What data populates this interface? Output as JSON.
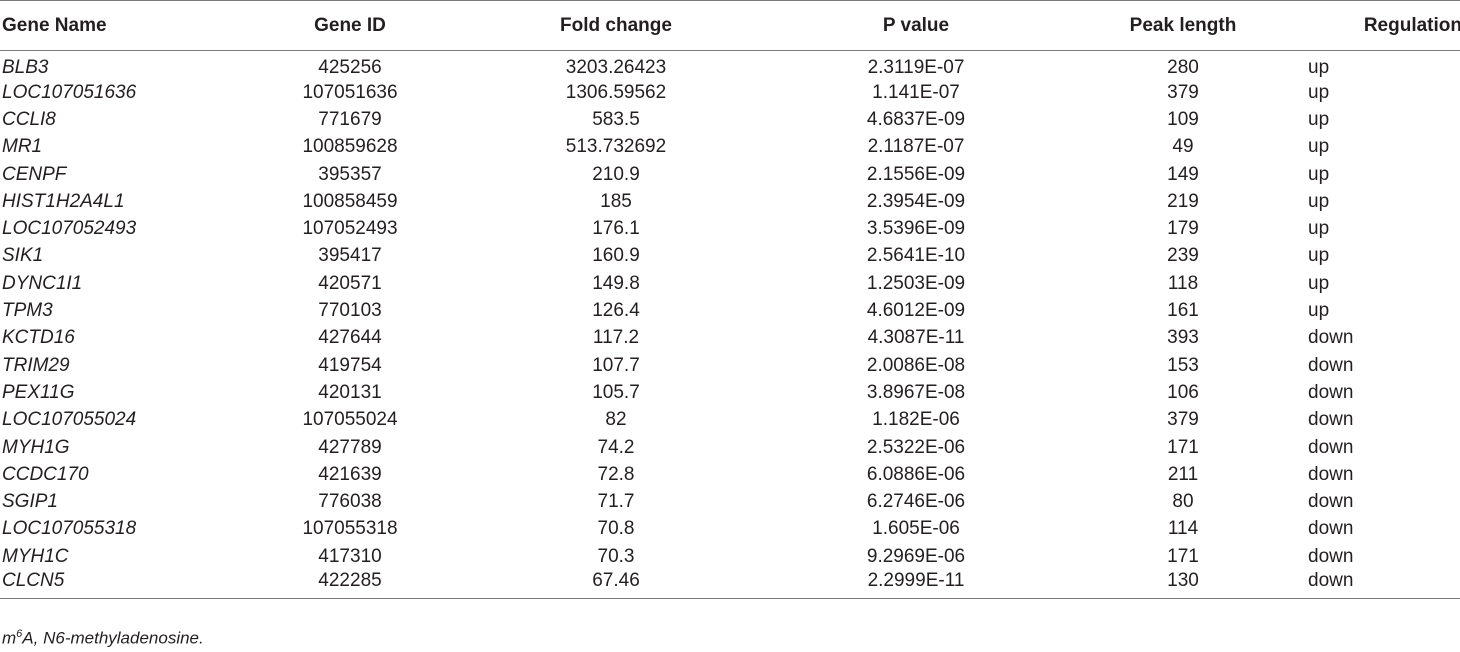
{
  "table": {
    "headers": [
      "Gene Name",
      "Gene ID",
      "Fold change",
      "P value",
      "Peak length",
      "Regulation"
    ],
    "rows": [
      [
        "BLB3",
        "425256",
        "3203.26423",
        "2.3119E-07",
        "280",
        "up"
      ],
      [
        "LOC107051636",
        "107051636",
        "1306.59562",
        "1.141E-07",
        "379",
        "up"
      ],
      [
        "CCLI8",
        "771679",
        "583.5",
        "4.6837E-09",
        "109",
        "up"
      ],
      [
        "MR1",
        "100859628",
        "513.732692",
        "2.1187E-07",
        "49",
        "up"
      ],
      [
        "CENPF",
        "395357",
        "210.9",
        "2.1556E-09",
        "149",
        "up"
      ],
      [
        "HIST1H2A4L1",
        "100858459",
        "185",
        "2.3954E-09",
        "219",
        "up"
      ],
      [
        "LOC107052493",
        "107052493",
        "176.1",
        "3.5396E-09",
        "179",
        "up"
      ],
      [
        "SIK1",
        "395417",
        "160.9",
        "2.5641E-10",
        "239",
        "up"
      ],
      [
        "DYNC1I1",
        "420571",
        "149.8",
        "1.2503E-09",
        "118",
        "up"
      ],
      [
        "TPM3",
        "770103",
        "126.4",
        "4.6012E-09",
        "161",
        "up"
      ],
      [
        "KCTD16",
        "427644",
        "117.2",
        "4.3087E-11",
        "393",
        "down"
      ],
      [
        "TRIM29",
        "419754",
        "107.7",
        "2.0086E-08",
        "153",
        "down"
      ],
      [
        "PEX11G",
        "420131",
        "105.7",
        "3.8967E-08",
        "106",
        "down"
      ],
      [
        "LOC107055024",
        "107055024",
        "82",
        "1.182E-06",
        "379",
        "down"
      ],
      [
        "MYH1G",
        "427789",
        "74.2",
        "2.5322E-06",
        "171",
        "down"
      ],
      [
        "CCDC170",
        "421639",
        "72.8",
        "6.0886E-06",
        "211",
        "down"
      ],
      [
        "SGIP1",
        "776038",
        "71.7",
        "6.2746E-06",
        "80",
        "down"
      ],
      [
        "LOC107055318",
        "107055318",
        "70.8",
        "1.605E-06",
        "114",
        "down"
      ],
      [
        "MYH1C",
        "417310",
        "70.3",
        "9.2969E-06",
        "171",
        "down"
      ],
      [
        "CLCN5",
        "422285",
        "67.46",
        "2.2999E-11",
        "130",
        "down"
      ]
    ]
  },
  "footnote": {
    "prefix": "m",
    "superscript": "6",
    "text": "A, N6-methyladenosine."
  }
}
